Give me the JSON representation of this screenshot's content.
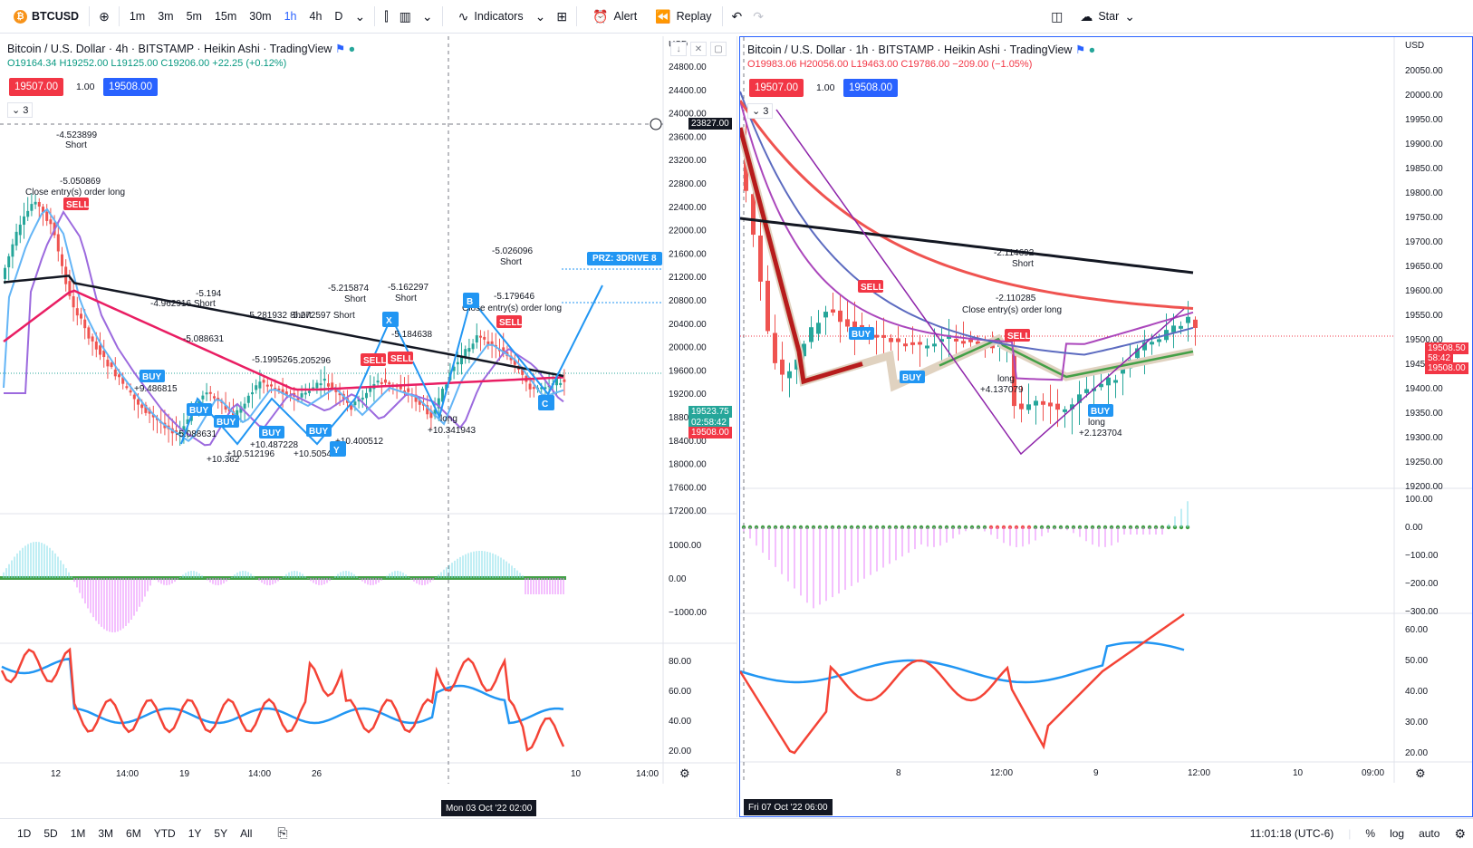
{
  "topbar": {
    "symbol": "BTCUSD",
    "timeframes": [
      "1m",
      "3m",
      "5m",
      "15m",
      "30m",
      "1h",
      "4h",
      "D"
    ],
    "active_timeframe": "1h",
    "indicators_label": "Indicators",
    "alert_label": "Alert",
    "replay_label": "Replay",
    "star_label": "Star"
  },
  "left": {
    "title": "Bitcoin / U.S. Dollar · 4h · BITSTAMP · Heikin Ashi · TradingView",
    "ohlc": "O19164.34 H19252.00 L19125.00 C19206.00 +22.25 (+0.12%)",
    "sell_price": "19507.00",
    "qty": "1.00",
    "buy_price": "19508.00",
    "indicator_count": "3",
    "currency": "USD",
    "price_ticks": [
      "24800.00",
      "24400.00",
      "24000.00",
      "23600.00",
      "23200.00",
      "22800.00",
      "22400.00",
      "22000.00",
      "21600.00",
      "21200.00",
      "20800.00",
      "20400.00",
      "20000.00",
      "19600.00",
      "19200.00",
      "18800.00",
      "18400.00",
      "18000.00",
      "17600.00",
      "17200.00"
    ],
    "crosshair_price": "23827.00",
    "last_price": "19523.75",
    "countdown": "02:58:42",
    "ask_price": "19508.00",
    "osc_ticks": [
      "1000.00",
      "0.00",
      "−1000.00"
    ],
    "rsi_ticks": [
      "80.00",
      "60.00",
      "40.00",
      "20.00"
    ],
    "time_ticks": [
      "12",
      "14:00",
      "19",
      "14:00",
      "26",
      "10",
      "14:00"
    ],
    "crosshair_date": "Mon 03 Oct '22   02:00",
    "prz_label": "PRZ: 3DRIVE 8",
    "annotations": [
      "-4.523899",
      "Short",
      "-5.050869",
      "Close entry(s) order long",
      "-5.194",
      "-4.962916 Short",
      "-5.088631",
      "-5.026096",
      "Short",
      "-5.179646",
      "Close entry(s) order long",
      "-5.215874",
      "Short",
      "-5.162297",
      "Short",
      "-5.184638",
      "-5.281932 Short",
      "-5.272597 Short",
      "-5.199526",
      "-5.205296",
      "+9.486815",
      "-5.088631",
      "+10.362",
      "+10.512196",
      "+10.487228",
      "+10.505469",
      "+10.400512",
      "+10.341943",
      "long"
    ],
    "tags": [
      "SELL",
      "BUY",
      "BUY",
      "BUY",
      "BUY",
      "BUY",
      "SELL",
      "SELL",
      "SELL"
    ],
    "pattern_points": [
      "X",
      "B",
      "C",
      "Y"
    ]
  },
  "right": {
    "title": "Bitcoin / U.S. Dollar · 1h · BITSTAMP · Heikin Ashi · TradingView",
    "ohlc": "O19983.06 H20056.00 L19463.00 C19786.00 −209.00 (−1.05%)",
    "sell_price": "19507.00",
    "qty": "1.00",
    "buy_price": "19508.00",
    "indicator_count": "3",
    "currency": "USD",
    "price_ticks": [
      "20050.00",
      "20000.00",
      "19950.00",
      "19900.00",
      "19850.00",
      "19800.00",
      "19750.00",
      "19700.00",
      "19650.00",
      "19600.00",
      "19550.00",
      "19500.00",
      "19450.00",
      "19400.00",
      "19350.00",
      "19300.00",
      "19250.00",
      "19200.00"
    ],
    "last_price": "19508.50",
    "countdown": "58:42",
    "ask_price": "19508.00",
    "osc_ticks": [
      "100.00",
      "0.00",
      "−100.00",
      "−200.00",
      "−300.00"
    ],
    "rsi_ticks": [
      "60.00",
      "50.00",
      "40.00",
      "30.00",
      "20.00"
    ],
    "time_ticks": [
      "8",
      "12:00",
      "9",
      "12:00",
      "10",
      "09:00"
    ],
    "crosshair_date": "Fri 07 Oct '22   06:00",
    "annotations": [
      "-2.114692",
      "Short",
      "-2.110285",
      "Close entry(s) order long",
      "long",
      "+4.137079",
      "long",
      "+2.123704"
    ],
    "tags": [
      "SELL",
      "BUY",
      "BUY",
      "BUY",
      "SELL"
    ]
  },
  "bottombar": {
    "ranges": [
      "1D",
      "5D",
      "1M",
      "3M",
      "6M",
      "YTD",
      "1Y",
      "5Y",
      "All"
    ],
    "clock": "11:01:18 (UTC-6)",
    "percent": "%",
    "log": "log",
    "auto": "auto"
  },
  "colors": {
    "up": "#26a69a",
    "down": "#ef5350",
    "accent": "#2962ff"
  }
}
